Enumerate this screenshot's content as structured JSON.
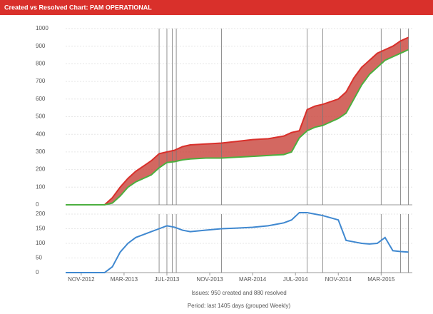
{
  "chart_data": {
    "type": "line",
    "title": "Created vs Resolved Chart: PAM OPERATIONAL",
    "x": [
      0,
      5,
      6,
      7,
      8,
      9,
      10,
      11,
      12,
      13,
      14,
      15,
      16,
      18,
      20,
      22,
      24,
      26,
      28,
      29,
      30,
      31,
      32,
      33,
      35,
      36,
      37,
      38,
      39,
      40,
      41,
      42,
      43,
      44
    ],
    "xlim": [
      0,
      44.5
    ],
    "xticks": [
      {
        "value": 2,
        "label": "NOV-2012"
      },
      {
        "value": 7.5,
        "label": "MAR-2013"
      },
      {
        "value": 13,
        "label": "JUL-2013"
      },
      {
        "value": 18.5,
        "label": "NOV-2013"
      },
      {
        "value": 24,
        "label": "MAR-2014"
      },
      {
        "value": 29.5,
        "label": "JUL-2014"
      },
      {
        "value": 35,
        "label": "NOV-2014"
      },
      {
        "value": 40.5,
        "label": "MAR-2015"
      }
    ],
    "series": [
      {
        "name": "created",
        "color": "#d9302b",
        "values": [
          0,
          0,
          40,
          100,
          150,
          190,
          220,
          250,
          290,
          300,
          310,
          330,
          340,
          345,
          350,
          360,
          370,
          375,
          390,
          410,
          420,
          540,
          560,
          570,
          600,
          640,
          720,
          780,
          820,
          860,
          880,
          900,
          930,
          950
        ]
      },
      {
        "name": "resolved",
        "color": "#4caf3f",
        "values": [
          0,
          0,
          10,
          50,
          100,
          130,
          150,
          170,
          210,
          240,
          245,
          255,
          260,
          265,
          265,
          270,
          275,
          280,
          285,
          300,
          380,
          420,
          440,
          450,
          490,
          520,
          600,
          680,
          740,
          780,
          820,
          840,
          860,
          880
        ]
      }
    ],
    "ylim": [
      0,
      1000
    ],
    "yticks": [
      0,
      100,
      200,
      300,
      400,
      500,
      600,
      700,
      800,
      900,
      1000
    ],
    "unresolved": {
      "color": "#3f88d0",
      "values": [
        0,
        0,
        20,
        70,
        100,
        120,
        130,
        140,
        150,
        160,
        155,
        145,
        140,
        145,
        150,
        152,
        155,
        160,
        170,
        180,
        205,
        205,
        200,
        195,
        180,
        110,
        105,
        100,
        98,
        100,
        120,
        75,
        72,
        70
      ]
    },
    "y2lim": [
      0,
      200
    ],
    "y2ticks": [
      0,
      50,
      100,
      150,
      200
    ],
    "markers": [
      12,
      13,
      13.7,
      14.2,
      20,
      31,
      33,
      40.5,
      43,
      44
    ],
    "legend": "Issues: 950 created and 880 resolved",
    "period": "Period: last 1405 days (grouped Weekly)"
  }
}
